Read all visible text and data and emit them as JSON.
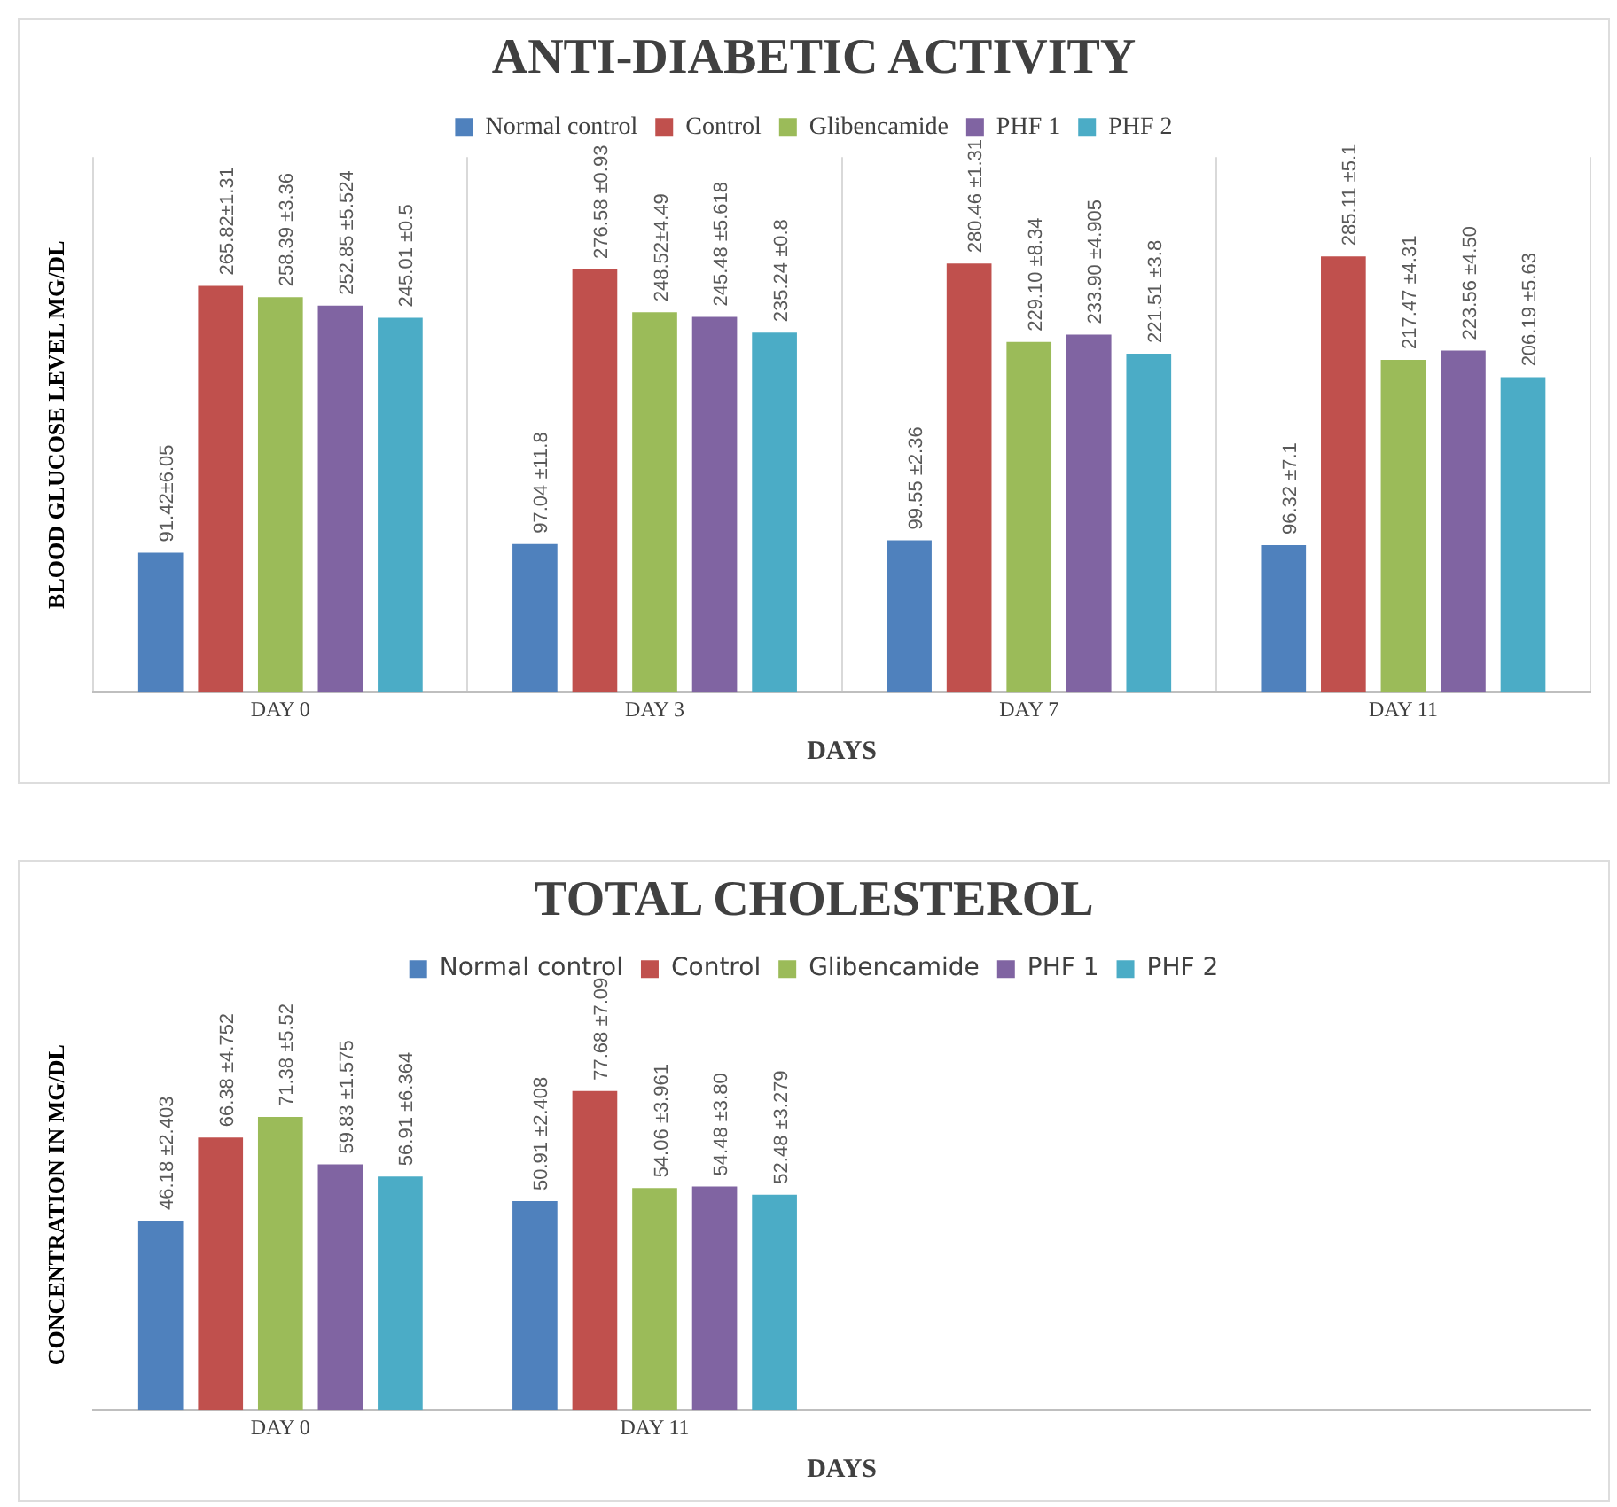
{
  "chart_data": [
    {
      "type": "bar",
      "title": "ANTI-DIABETIC ACTIVITY",
      "xlabel": "DAYS",
      "ylabel": "BLOOD GLUCOSE LEVEL MG/DL",
      "categories": [
        "DAY 0",
        "DAY 3",
        "DAY 7",
        "DAY 11"
      ],
      "grid": "x",
      "legend": "top",
      "series": [
        {
          "name": "Normal control",
          "color": "#4f81bd",
          "values": [
            91.42,
            97.04,
            99.55,
            96.32
          ],
          "value_labels": [
            "91.42±6.05",
            "97.04 ±11.8",
            "99.55 ±2.36",
            "96.32 ±7.1"
          ]
        },
        {
          "name": "Control",
          "color": "#c0504d",
          "values": [
            265.82,
            276.58,
            280.46,
            285.11
          ],
          "value_labels": [
            "265.82±1.31",
            "276.58 ±0.93",
            "280.46 ±1.31",
            "285.11 ±5.1"
          ]
        },
        {
          "name": "Glibencamide",
          "color": "#9bbb59",
          "values": [
            258.39,
            248.52,
            229.1,
            217.47
          ],
          "value_labels": [
            "258.39 ±3.36",
            "248.52±4.49",
            "229.10 ±8.34",
            "217.47 ±4.31"
          ]
        },
        {
          "name": "PHF 1",
          "color": "#8064a2",
          "values": [
            252.85,
            245.48,
            233.9,
            223.56
          ],
          "value_labels": [
            "252.85 ±5.524",
            "245.48 ±5.618",
            "233.90 ±4.905",
            "223.56 ±4.50"
          ]
        },
        {
          "name": "PHF 2",
          "color": "#4bacc6",
          "values": [
            245.01,
            235.24,
            221.51,
            206.19
          ],
          "value_labels": [
            "245.01 ±0.5",
            "235.24 ±0.8",
            "221.51 ±3.8",
            "206.19 ±5.63"
          ]
        }
      ]
    },
    {
      "type": "bar",
      "title": "TOTAL CHOLESTEROL",
      "xlabel": "DAYS",
      "ylabel": "CONCENTRATION IN MG/DL",
      "categories": [
        "DAY 0",
        "DAY 11",
        null,
        null
      ],
      "grid": false,
      "legend": "top",
      "series": [
        {
          "name": "Normal control",
          "color": "#4f81bd",
          "values": [
            46.18,
            50.91,
            null,
            null
          ],
          "value_labels": [
            "46.18 ±2.403",
            "50.91 ±2.408",
            null,
            null
          ]
        },
        {
          "name": "Control",
          "color": "#c0504d",
          "values": [
            66.38,
            77.68,
            null,
            null
          ],
          "value_labels": [
            "66.38 ±4.752",
            "77.68 ±7.09",
            null,
            null
          ]
        },
        {
          "name": "Glibencamide",
          "color": "#9bbb59",
          "values": [
            71.38,
            54.06,
            null,
            null
          ],
          "value_labels": [
            "71.38 ±5.52",
            "54.06 ±3.961",
            null,
            null
          ]
        },
        {
          "name": "PHF 1",
          "color": "#8064a2",
          "values": [
            59.83,
            54.48,
            null,
            null
          ],
          "value_labels": [
            "59.83 ±1.575",
            "54.48 ±3.80",
            null,
            null
          ]
        },
        {
          "name": "PHF 2",
          "color": "#4bacc6",
          "values": [
            56.91,
            52.48,
            null,
            null
          ],
          "value_labels": [
            "56.91 ±6.364",
            "52.48 ±3.279",
            null,
            null
          ]
        }
      ]
    }
  ]
}
